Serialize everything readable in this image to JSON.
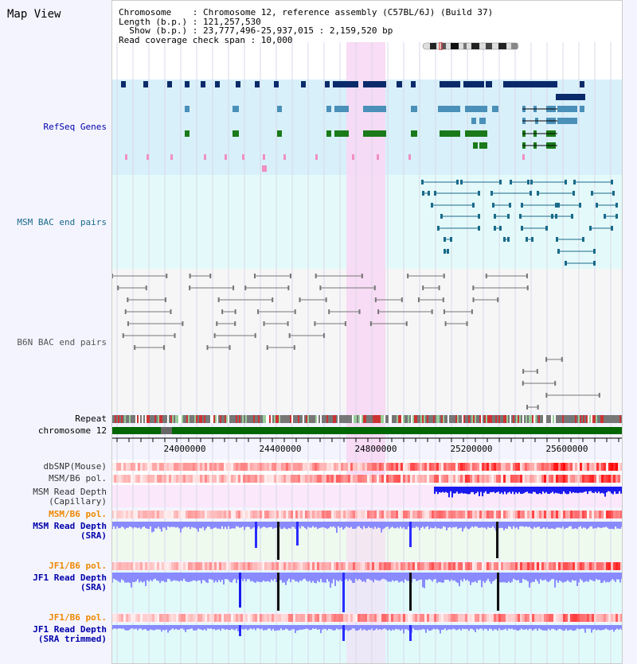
{
  "view_title": "Map View",
  "header": {
    "chromosome_line": "Chromosome    : Chromosome 12, reference assembly (C57BL/6J) (Build 37)",
    "length_line": "Length (b.p.) : 121,257,530",
    "show_line": "  Show (b.p.) : 23,777,496-25,937,015 : 2,159,520 bp",
    "coverage_line": "Read coverage check span : 10,000"
  },
  "tracks": {
    "refseq": "RefSeq Genes",
    "msm_bac": "MSM BAC end pairs",
    "b6n_bac": "B6N BAC end pairs",
    "repeat": "Repeat",
    "chromosome": "chromosome 12",
    "dbsnp": "dbSNP(Mouse)",
    "msm_b6_pol_1": "MSM/B6 pol.",
    "msm_depth_cap_1": "MSM Read Depth",
    "msm_depth_cap_2": "(Capillary)",
    "msm_b6_pol_2": "MSM/B6 pol.",
    "msm_depth_sra_1": "MSM Read Depth",
    "msm_depth_sra_2": "(SRA)",
    "jf1_b6_pol_1": "JF1/B6 pol.",
    "jf1_depth_sra_1": "JF1 Read Depth",
    "jf1_depth_sra_2": "(SRA)",
    "jf1_b6_pol_2": "JF1/B6 pol.",
    "jf1_depth_trim_1": "JF1 Read Depth",
    "jf1_depth_trim_2": "(SRA trimmed)"
  },
  "axis_ticks": [
    "24000000",
    "24400000",
    "24800000",
    "25200000",
    "25600000"
  ],
  "colors": {
    "refseq_bg": "#d8f0fa",
    "bac_bg": "#e4fafa",
    "highlight": "#f8d8f4",
    "chromosome_bar": "#006600",
    "gene_dark": "#0a2a6a",
    "gene_mid": "#4a90b8",
    "gene_green": "#1a7a1a",
    "msm_bac": "#1a6a8a",
    "b6n_bac": "#777777",
    "depth_blue": "#2b2bff",
    "depth_light": "#8a8aff",
    "label_blue": "#0000aa",
    "label_orange": "#ee8800"
  }
}
